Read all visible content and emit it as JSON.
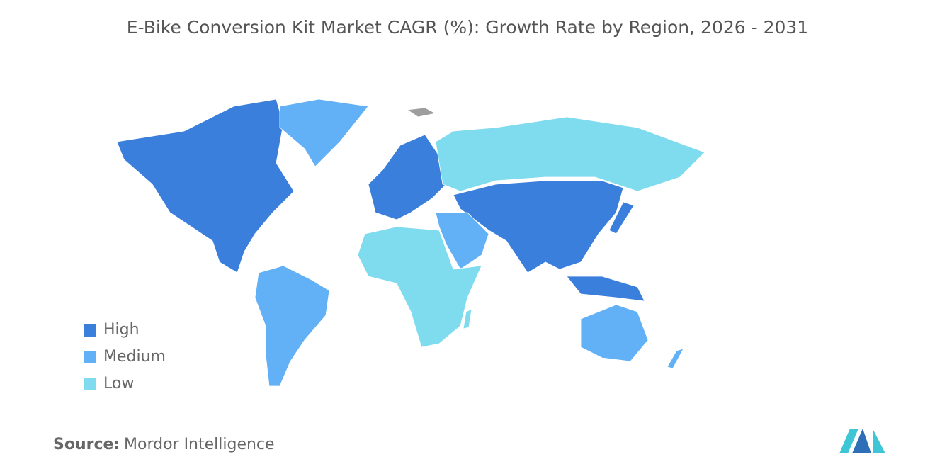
{
  "title": "E-Bike Conversion Kit Market CAGR (%): Growth Rate by Region, 2026 - 2031",
  "legend": [
    {
      "label": "High",
      "color": "#3a7fdb"
    },
    {
      "label": "Medium",
      "color": "#62b0f5"
    },
    {
      "label": "Low",
      "color": "#7fdbee"
    }
  ],
  "source": {
    "label": "Source:",
    "text": "Mordor Intelligence"
  }
}
